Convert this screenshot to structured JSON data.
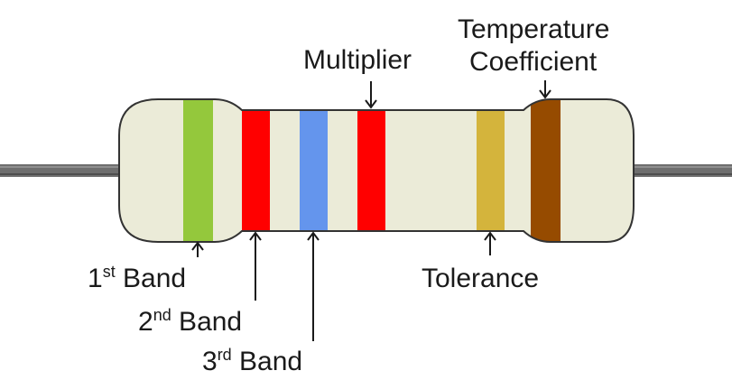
{
  "colors": {
    "body": "#ebebd8",
    "outline": "#333333",
    "wire": "#6e6e6e",
    "band1": "#94c83c",
    "band2": "#ff0000",
    "band3": "#6495ed",
    "multiplier": "#ff0000",
    "tolerance": "#d4b43c",
    "tempco": "#964b00"
  },
  "labels": {
    "band1": {
      "num": "1",
      "sup": "st",
      "text": " Band"
    },
    "band2": {
      "num": "2",
      "sup": "nd",
      "text": " Band"
    },
    "band3": {
      "num": "3",
      "sup": "rd",
      "text": " Band"
    },
    "multiplier": "Multiplier",
    "tolerance": "Tolerance",
    "tempco_line1": "Temperature",
    "tempco_line2": "Coefficient"
  }
}
